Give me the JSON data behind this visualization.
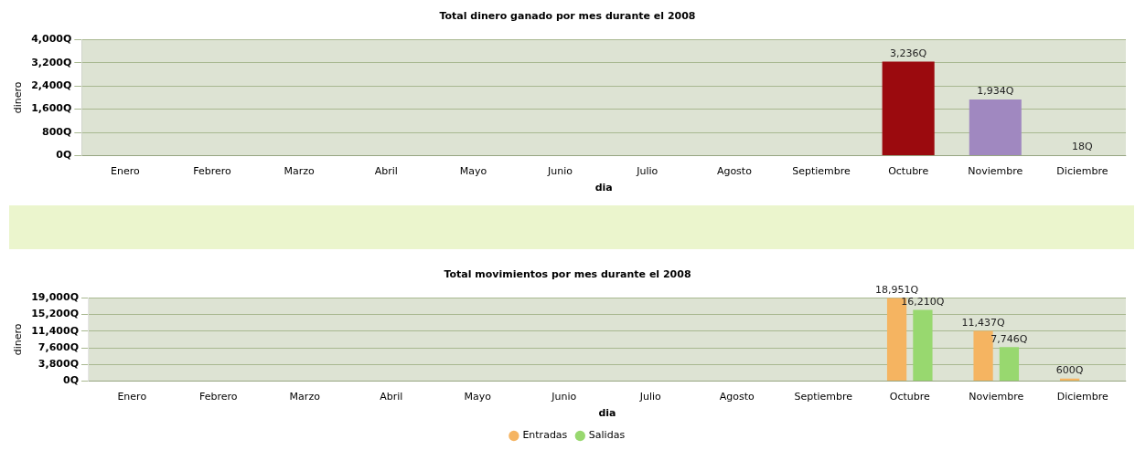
{
  "chart_data": [
    {
      "type": "bar",
      "title": "Total dinero ganado por mes durante el 2008",
      "xlabel": "dia",
      "ylabel": "dinero",
      "categories": [
        "Enero",
        "Febrero",
        "Marzo",
        "Abril",
        "Mayo",
        "Junio",
        "Julio",
        "Agosto",
        "Septiembre",
        "Octubre",
        "Noviembre",
        "Diciembre"
      ],
      "values": [
        null,
        null,
        null,
        null,
        null,
        null,
        null,
        null,
        null,
        3236,
        1934,
        18
      ],
      "colors": [
        "#9b0a0e",
        "#9b0a0e",
        "#9b0a0e",
        "#9b0a0e",
        "#9b0a0e",
        "#9b0a0e",
        "#9b0a0e",
        "#9b0a0e",
        "#9b0a0e",
        "#9b0a0e",
        "#a088c0",
        "#8fb0d0"
      ],
      "value_labels": [
        null,
        null,
        null,
        null,
        null,
        null,
        null,
        null,
        null,
        "3,236Q",
        "1,934Q",
        "18Q"
      ],
      "ylim": [
        0,
        4000
      ],
      "yticks": [
        {
          "value": 0,
          "label": "0Q"
        },
        {
          "value": 800,
          "label": "800Q"
        },
        {
          "value": 1600,
          "label": "1,600Q"
        },
        {
          "value": 2400,
          "label": "2,400Q"
        },
        {
          "value": 3200,
          "label": "3,200Q"
        },
        {
          "value": 4000,
          "label": "4,000Q"
        }
      ],
      "grid": "y",
      "legend": false
    },
    {
      "type": "bar",
      "title": "Total movimientos por mes durante el 2008",
      "xlabel": "dia",
      "ylabel": "dinero",
      "categories": [
        "Enero",
        "Febrero",
        "Marzo",
        "Abril",
        "Mayo",
        "Junio",
        "Julio",
        "Agosto",
        "Septiembre",
        "Octubre",
        "Noviembre",
        "Diciembre"
      ],
      "series": [
        {
          "name": "Entradas",
          "color": "#f5b461",
          "values": [
            null,
            null,
            null,
            null,
            null,
            null,
            null,
            null,
            null,
            18951,
            11437,
            600
          ],
          "value_labels": [
            null,
            null,
            null,
            null,
            null,
            null,
            null,
            null,
            null,
            "18,951Q",
            "11,437Q",
            "600Q"
          ]
        },
        {
          "name": "Salidas",
          "color": "#98d86f",
          "values": [
            null,
            null,
            null,
            null,
            null,
            null,
            null,
            null,
            null,
            16210,
            7746,
            null
          ],
          "value_labels": [
            null,
            null,
            null,
            null,
            null,
            null,
            null,
            null,
            null,
            "16,210Q",
            "7,746Q",
            null
          ]
        }
      ],
      "ylim": [
        0,
        19000
      ],
      "yticks": [
        {
          "value": 0,
          "label": "0Q"
        },
        {
          "value": 3800,
          "label": "3,800Q"
        },
        {
          "value": 7600,
          "label": "7,600Q"
        },
        {
          "value": 11400,
          "label": "11,400Q"
        },
        {
          "value": 15200,
          "label": "15,200Q"
        },
        {
          "value": 19000,
          "label": "19,000Q"
        }
      ],
      "grid": "y",
      "legend": "bottom"
    }
  ]
}
